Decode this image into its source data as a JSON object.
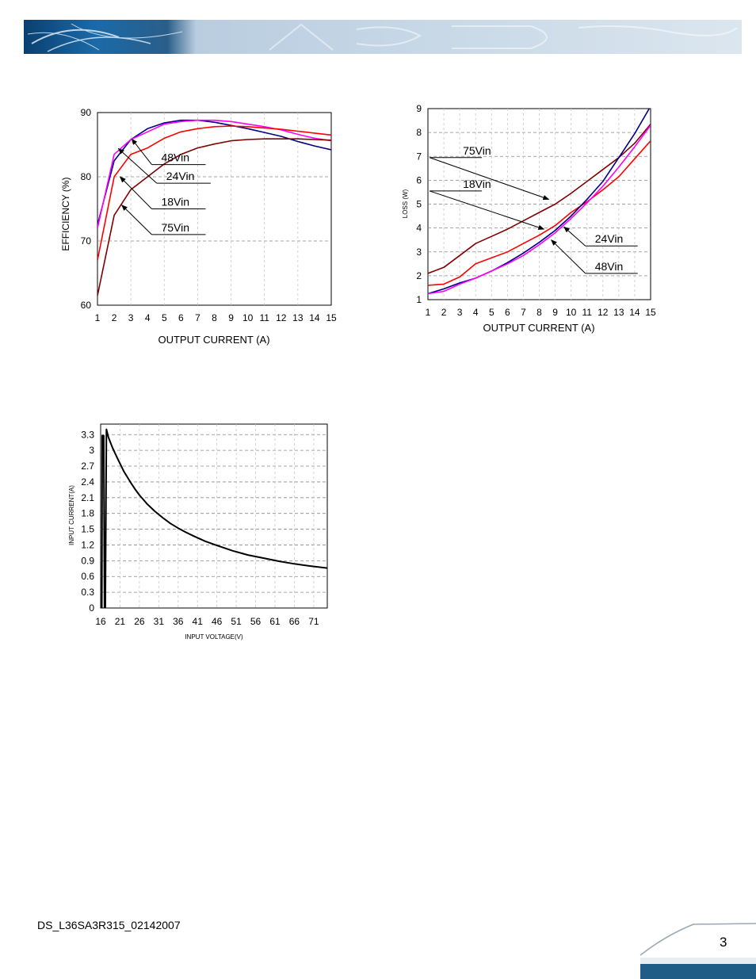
{
  "header": {
    "colors": {
      "dark": "#0d4a7a",
      "light": "#c9d8e6"
    }
  },
  "footer": {
    "doc_id": "DS_L36SA3R315_02142007",
    "page_number": "3"
  },
  "chart_data": [
    {
      "id": "efficiency",
      "type": "line",
      "xlabel": "OUTPUT CURRENT (A)",
      "ylabel": "EFFICIENCY (%)",
      "xlim": [
        1,
        15
      ],
      "ylim": [
        60,
        90
      ],
      "xticks": [
        1,
        2,
        3,
        4,
        5,
        6,
        7,
        8,
        9,
        10,
        11,
        12,
        13,
        14,
        15
      ],
      "yticks": [
        60,
        70,
        80,
        90
      ],
      "grid": true,
      "series": [
        {
          "name": "48Vin",
          "color": "#000080",
          "x": [
            1,
            2,
            3,
            4,
            5,
            6,
            7,
            8,
            9,
            10,
            11,
            12,
            13,
            14,
            15
          ],
          "y": [
            72.5,
            82.5,
            85.8,
            87.5,
            88.4,
            88.8,
            88.8,
            88.5,
            88.0,
            87.5,
            86.9,
            86.3,
            85.5,
            84.8,
            84.2
          ]
        },
        {
          "name": "24Vin",
          "color": "#ff00ff",
          "x": [
            1,
            2,
            3,
            4,
            5,
            6,
            7,
            8,
            9,
            10,
            11,
            12,
            13,
            14,
            15
          ],
          "y": [
            72.0,
            83.5,
            85.8,
            87.0,
            88.2,
            88.6,
            88.8,
            88.8,
            88.6,
            88.2,
            87.8,
            87.3,
            86.6,
            86.0,
            85.6
          ]
        },
        {
          "name": "18Vin",
          "color": "#ff0000",
          "x": [
            1,
            2,
            3,
            4,
            5,
            6,
            7,
            8,
            9,
            10,
            11,
            12,
            13,
            14,
            15
          ],
          "y": [
            67.0,
            80.0,
            83.5,
            84.5,
            86.0,
            87.0,
            87.5,
            87.8,
            87.9,
            87.8,
            87.6,
            87.4,
            87.1,
            86.8,
            86.5
          ]
        },
        {
          "name": "75Vin",
          "color": "#800000",
          "x": [
            1,
            2,
            3,
            4,
            5,
            6,
            7,
            8,
            9,
            10,
            11,
            12,
            13,
            14,
            15
          ],
          "y": [
            61.5,
            74.0,
            78.0,
            80.0,
            82.0,
            83.5,
            84.5,
            85.1,
            85.6,
            85.8,
            85.9,
            85.9,
            85.9,
            85.8,
            85.7
          ]
        }
      ],
      "annotations": [
        {
          "text": "48Vin",
          "label_at": [
            4.25,
            81.9
          ],
          "arrow_to": [
            3.05,
            85.9
          ]
        },
        {
          "text": "24Vin",
          "label_at": [
            4.55,
            79.0
          ],
          "arrow_to": [
            2.25,
            84.4
          ]
        },
        {
          "text": "18Vin",
          "label_at": [
            4.25,
            75.0
          ],
          "arrow_to": [
            2.35,
            80.0
          ]
        },
        {
          "text": "75Vin",
          "label_at": [
            4.25,
            71.0
          ],
          "arrow_to": [
            2.45,
            75.6
          ]
        }
      ]
    },
    {
      "id": "loss",
      "type": "line",
      "xlabel": "OUTPUT CURRENT (A)",
      "ylabel": "LOSS (W)",
      "xlim": [
        1,
        15
      ],
      "ylim": [
        1,
        9
      ],
      "xticks": [
        1,
        2,
        3,
        4,
        5,
        6,
        7,
        8,
        9,
        10,
        11,
        12,
        13,
        14,
        15
      ],
      "yticks": [
        1,
        2,
        3,
        4,
        5,
        6,
        7,
        8,
        9
      ],
      "grid": true,
      "series": [
        {
          "name": "75Vin",
          "color": "#800000",
          "x": [
            1,
            2,
            3,
            4,
            5,
            6,
            7,
            8,
            9,
            10,
            11,
            12,
            13,
            14,
            15
          ],
          "y": [
            2.1,
            2.35,
            2.85,
            3.35,
            3.65,
            3.95,
            4.3,
            4.65,
            5.0,
            5.45,
            5.95,
            6.45,
            6.95,
            7.55,
            8.35
          ]
        },
        {
          "name": "18Vin",
          "color": "#ff0000",
          "x": [
            1,
            2,
            3,
            4,
            5,
            6,
            7,
            8,
            9,
            10,
            11,
            12,
            13,
            14,
            15
          ],
          "y": [
            1.6,
            1.65,
            1.95,
            2.5,
            2.75,
            3.0,
            3.35,
            3.7,
            4.1,
            4.65,
            5.1,
            5.6,
            6.15,
            6.9,
            7.65
          ]
        },
        {
          "name": "48Vin",
          "color": "#000080",
          "x": [
            1,
            2,
            3,
            4,
            5,
            6,
            7,
            8,
            9,
            10,
            11,
            12,
            13,
            14,
            15
          ],
          "y": [
            1.25,
            1.45,
            1.7,
            1.9,
            2.2,
            2.55,
            2.95,
            3.4,
            3.9,
            4.5,
            5.2,
            5.95,
            6.95,
            7.95,
            9.1
          ]
        },
        {
          "name": "24Vin",
          "color": "#ff00ff",
          "x": [
            1,
            2,
            3,
            4,
            5,
            6,
            7,
            8,
            9,
            10,
            11,
            12,
            13,
            14,
            15
          ],
          "y": [
            1.25,
            1.35,
            1.65,
            1.9,
            2.2,
            2.5,
            2.85,
            3.3,
            3.8,
            4.4,
            5.05,
            5.75,
            6.55,
            7.4,
            8.3
          ]
        }
      ],
      "annotations": [
        {
          "text": "75Vin",
          "label_at": [
            2.6,
            6.95
          ],
          "arrow_to": [
            8.6,
            5.2
          ]
        },
        {
          "text": "18Vin",
          "label_at": [
            2.6,
            5.55
          ],
          "arrow_to": [
            8.3,
            3.95
          ]
        },
        {
          "text": "24Vin",
          "label_at": [
            10.9,
            3.25
          ],
          "arrow_to": [
            9.55,
            4.05
          ]
        },
        {
          "text": "48Vin",
          "label_at": [
            10.9,
            2.1
          ],
          "arrow_to": [
            8.75,
            3.5
          ]
        }
      ]
    },
    {
      "id": "input-current",
      "type": "line",
      "xlabel": "INPUT VOLTAGE(V)",
      "ylabel": "INPUT CURRENT(A)",
      "xlim": [
        16,
        74.5
      ],
      "ylim": [
        0,
        3.5
      ],
      "xticks": [
        16,
        21,
        26,
        31,
        36,
        41,
        46,
        51,
        56,
        61,
        66,
        71
      ],
      "yticks": [
        "0",
        "0.3",
        "0.6",
        "0.9",
        "1.2",
        "1.5",
        "1.8",
        "2.1",
        "2.4",
        "2.7",
        "3",
        "3.3"
      ],
      "grid": true,
      "series": [
        {
          "color": "#000000",
          "x": [
            16.3,
            16.4,
            16.8,
            17.0,
            17.2,
            17.5,
            18,
            19,
            20,
            21,
            22,
            23,
            24,
            25,
            26,
            28,
            30,
            32,
            34,
            36,
            38,
            40,
            43,
            46,
            50,
            54,
            58,
            62,
            66,
            70,
            74.5
          ],
          "y": [
            0,
            3.28,
            3.28,
            0,
            0,
            3.4,
            3.25,
            3.06,
            2.9,
            2.75,
            2.6,
            2.48,
            2.36,
            2.25,
            2.15,
            1.98,
            1.84,
            1.72,
            1.61,
            1.52,
            1.44,
            1.37,
            1.27,
            1.19,
            1.09,
            1.01,
            0.95,
            0.89,
            0.84,
            0.8,
            0.76
          ]
        }
      ]
    }
  ]
}
